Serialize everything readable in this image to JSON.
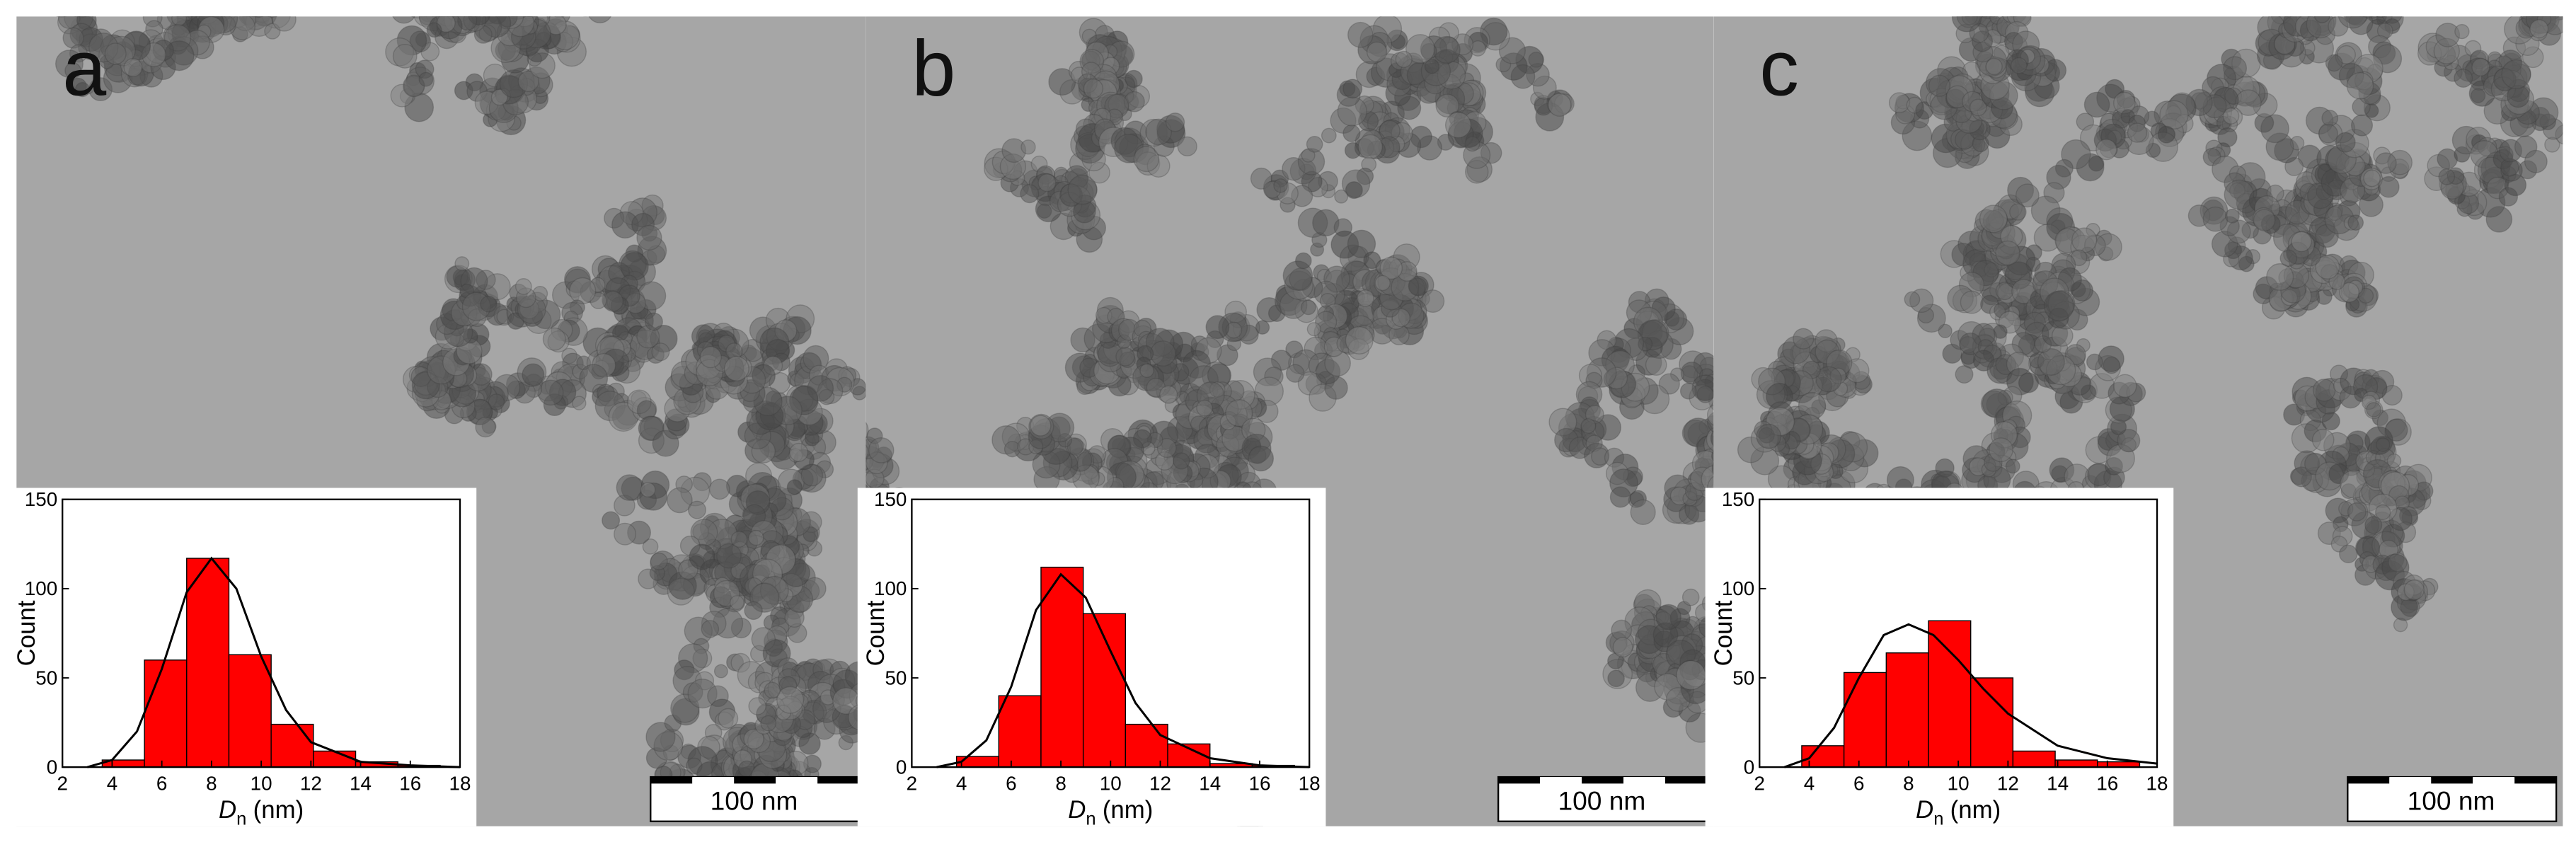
{
  "chart_data": [
    {
      "type": "histogram",
      "panel_label": "a",
      "scale_bar": "100 nm",
      "y_label": "Count",
      "x_label_symbol": "D",
      "x_label_subscript": "n",
      "x_label_unit": "(nm)",
      "bins": [
        3.6,
        5.3,
        7.0,
        8.7,
        10.4,
        12.1,
        13.8,
        15.5,
        17.2
      ],
      "values": [
        4,
        60,
        117,
        63,
        24,
        9,
        3,
        1
      ],
      "color": "#ff0000",
      "fit": {
        "color": "#000000",
        "x": [
          3,
          4,
          5,
          6,
          7,
          8,
          9,
          10,
          11,
          12,
          14,
          16,
          18
        ],
        "values": [
          0,
          4,
          20,
          55,
          98,
          117,
          100,
          62,
          32,
          14,
          3,
          1,
          0
        ]
      },
      "xlim": [
        2,
        18
      ],
      "xticks": [
        2,
        4,
        6,
        8,
        10,
        12,
        14,
        16,
        18
      ],
      "ylim": [
        0,
        150
      ],
      "yticks": [
        0,
        50,
        100,
        150
      ]
    },
    {
      "type": "histogram",
      "panel_label": "b",
      "scale_bar": "100 nm",
      "y_label": "Count",
      "x_label_symbol": "D",
      "x_label_subscript": "n",
      "x_label_unit": "(nm)",
      "bins": [
        3.8,
        5.5,
        7.2,
        8.9,
        10.6,
        12.3,
        14.0,
        15.7,
        17.4
      ],
      "values": [
        6,
        40,
        112,
        86,
        24,
        13,
        2,
        1
      ],
      "color": "#ff0000",
      "fit": {
        "color": "#000000",
        "x": [
          3,
          4,
          5,
          6,
          7,
          8,
          9,
          10,
          11,
          12,
          14,
          16,
          18
        ],
        "values": [
          0,
          3,
          15,
          45,
          88,
          108,
          95,
          65,
          36,
          18,
          5,
          1,
          0
        ]
      },
      "xlim": [
        2,
        18
      ],
      "xticks": [
        2,
        4,
        6,
        8,
        10,
        12,
        14,
        16,
        18
      ],
      "ylim": [
        0,
        150
      ],
      "yticks": [
        0,
        50,
        100,
        150
      ]
    },
    {
      "type": "histogram",
      "panel_label": "c",
      "scale_bar": "100 nm",
      "y_label": "Count",
      "x_label_symbol": "D",
      "x_label_subscript": "n",
      "x_label_unit": "(nm)",
      "bins": [
        3.7,
        5.4,
        7.1,
        8.8,
        10.5,
        12.2,
        13.9,
        15.6,
        17.3
      ],
      "values": [
        12,
        53,
        64,
        82,
        50,
        9,
        4,
        3
      ],
      "color": "#ff0000",
      "fit": {
        "color": "#000000",
        "x": [
          3,
          4,
          5,
          6,
          7,
          8,
          9,
          10,
          11,
          12,
          14,
          16,
          18
        ],
        "values": [
          0,
          5,
          22,
          50,
          74,
          80,
          74,
          60,
          44,
          30,
          12,
          5,
          2
        ]
      },
      "xlim": [
        2,
        18
      ],
      "xticks": [
        2,
        4,
        6,
        8,
        10,
        12,
        14,
        16,
        18
      ],
      "ylim": [
        0,
        150
      ],
      "yticks": [
        0,
        50,
        100,
        150
      ]
    }
  ]
}
